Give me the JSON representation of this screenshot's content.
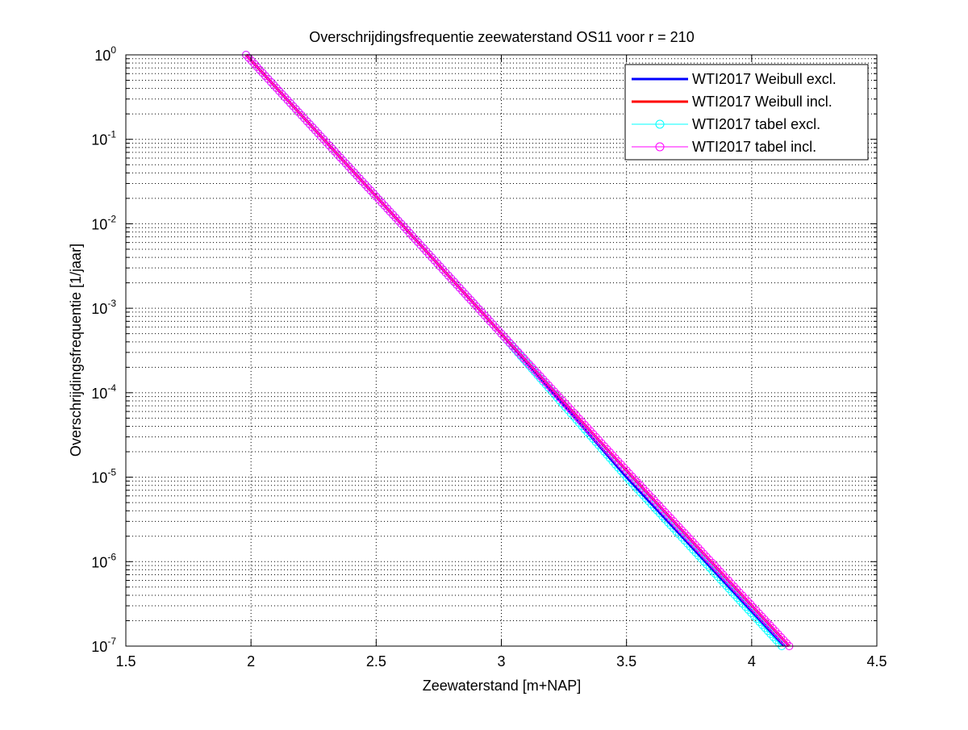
{
  "chart_data": {
    "type": "line",
    "title": "Overschrijdingsfrequentie zeewaterstand OS11 voor r = 210",
    "xlabel": "Zeewaterstand [m+NAP]",
    "ylabel": "Overschrijdingsfrequentie [1/jaar]",
    "xlim": [
      1.5,
      4.5
    ],
    "ylim": [
      1e-07,
      1
    ],
    "yscale": "log",
    "grid": true,
    "legend_position": "top-right",
    "xticks": [
      "1.5",
      "2",
      "2.5",
      "3",
      "3.5",
      "4",
      "4.5"
    ],
    "yticks": [
      {
        "base": "10",
        "exp": "-7",
        "value": 1e-07
      },
      {
        "base": "10",
        "exp": "-6",
        "value": 1e-06
      },
      {
        "base": "10",
        "exp": "-5",
        "value": 1e-05
      },
      {
        "base": "10",
        "exp": "-4",
        "value": 0.0001
      },
      {
        "base": "10",
        "exp": "-3",
        "value": 0.001
      },
      {
        "base": "10",
        "exp": "-2",
        "value": 0.01
      },
      {
        "base": "10",
        "exp": "-1",
        "value": 0.1
      },
      {
        "base": "10",
        "exp": "0",
        "value": 1
      }
    ],
    "series": [
      {
        "name": "WTI2017 Weibull excl.",
        "color": "#0000ff",
        "style": "line",
        "x": [
          1.98,
          2.6,
          3.0,
          3.5,
          4.13
        ],
        "y": [
          1.0,
          0.01,
          0.0005,
          1e-05,
          1e-07
        ]
      },
      {
        "name": "WTI2017 Weibull incl.",
        "color": "#ff0000",
        "style": "line",
        "x": [
          1.98,
          2.6,
          3.0,
          3.5,
          4.15
        ],
        "y": [
          1.0,
          0.01,
          0.0005,
          1.2e-05,
          1e-07
        ]
      },
      {
        "name": "WTI2017 tabel excl.",
        "color": "#00ffff",
        "style": "line-circle",
        "x": [
          1.98,
          2.6,
          3.0,
          3.5,
          4.12
        ],
        "y": [
          1.0,
          0.01,
          0.0005,
          1e-05,
          1e-07
        ]
      },
      {
        "name": "WTI2017 tabel incl.",
        "color": "#ff00ff",
        "style": "line-circle",
        "x": [
          1.98,
          2.6,
          3.0,
          3.5,
          4.15
        ],
        "y": [
          1.0,
          0.01,
          0.0005,
          1.2e-05,
          1e-07
        ]
      }
    ]
  }
}
